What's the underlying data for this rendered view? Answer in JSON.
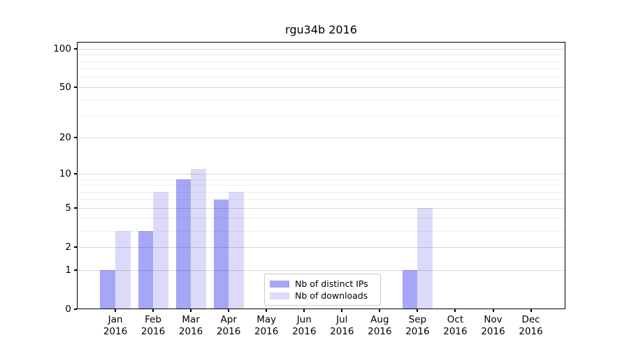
{
  "title": "rgu34b 2016",
  "chart_data": {
    "type": "bar",
    "title": "rgu34b 2016",
    "categories": [
      "Jan",
      "Feb",
      "Mar",
      "Apr",
      "May",
      "Jun",
      "Jul",
      "Aug",
      "Sep",
      "Oct",
      "Nov",
      "Dec"
    ],
    "x_tick_year": "2016",
    "series": [
      {
        "name": "Nb of distinct IPs",
        "color": "#a6a6f7",
        "values": [
          1,
          3,
          9,
          6,
          0,
          0,
          0,
          0,
          1,
          0,
          0,
          0
        ]
      },
      {
        "name": "Nb of downloads",
        "color": "#dbdbf9",
        "values": [
          3,
          7,
          11,
          7,
          0,
          0,
          0,
          0,
          5,
          0,
          0,
          0
        ]
      }
    ],
    "yscale": "log1p",
    "ylim": [
      0,
      113
    ],
    "y_major_ticks": [
      0,
      1,
      2,
      5,
      10,
      20,
      50,
      100
    ],
    "y_minor_gridlines": [
      3,
      4,
      6,
      7,
      8,
      9,
      30,
      40,
      60,
      70,
      80,
      90
    ],
    "grid": "horizontal",
    "legend_position": "inside-bottom-center"
  },
  "legend": {
    "items": [
      {
        "label": "Nb of distinct IPs",
        "color": "#a6a6f7"
      },
      {
        "label": "Nb of downloads",
        "color": "#dbdbf9"
      }
    ]
  },
  "colors": {
    "background": "#ffffff",
    "axis": "#000000",
    "grid_major": "#d9d9d9",
    "grid_minor": "#f0f0f0",
    "series_ips": "#a6a6f7",
    "series_downloads": "#dbdbf9"
  }
}
